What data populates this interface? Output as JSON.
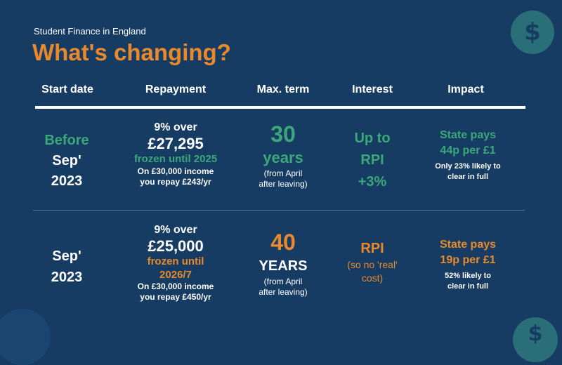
{
  "header": {
    "subtitle": "Student Finance in England",
    "title": "What's changing?"
  },
  "columns": [
    "Start date",
    "Repayment",
    "Max. term",
    "Interest",
    "Impact"
  ],
  "rows": [
    {
      "start": {
        "line1": "Before",
        "line2": "Sep'",
        "line3": "2023"
      },
      "repayment": {
        "l1": "9% over",
        "l2": "£27,295",
        "l3": "frozen until 2025",
        "l4": "On £30,000 income",
        "l5": "you repay £243/yr"
      },
      "term": {
        "num": "30",
        "unit": "years",
        "note1": "(from April",
        "note2": "after leaving)"
      },
      "interest": {
        "l1": "Up to",
        "l2": "RPI",
        "l3": "+3%"
      },
      "impact": {
        "l1": "State pays",
        "l2": "44p per £1",
        "l3": "Only 23% likely to",
        "l4": "clear in full"
      }
    },
    {
      "start": {
        "line1": "Sep'",
        "line2": "2023"
      },
      "repayment": {
        "l1": "9% over",
        "l2": "£25,000",
        "l3": "frozen until",
        "l4": "2026/7",
        "l5": "On £30,000 income",
        "l6": "you repay £450/yr"
      },
      "term": {
        "num": "40",
        "unit": "YEARS",
        "note1": "(from April",
        "note2": "after leaving)"
      },
      "interest": {
        "l1": "RPI",
        "l2": "(so no 'real'",
        "l3": "cost)"
      },
      "impact": {
        "l1": "State pays",
        "l2": "19p per £1",
        "l3": "52% likely to",
        "l4": "clear in full"
      }
    }
  ],
  "icons": {
    "top": "dollar-coin-icon",
    "bottom": "dollar-coin-icon"
  },
  "colors": {
    "background": "#163c64",
    "orange": "#e8892b",
    "green": "#3aa878",
    "badge": "#2a6f78"
  }
}
